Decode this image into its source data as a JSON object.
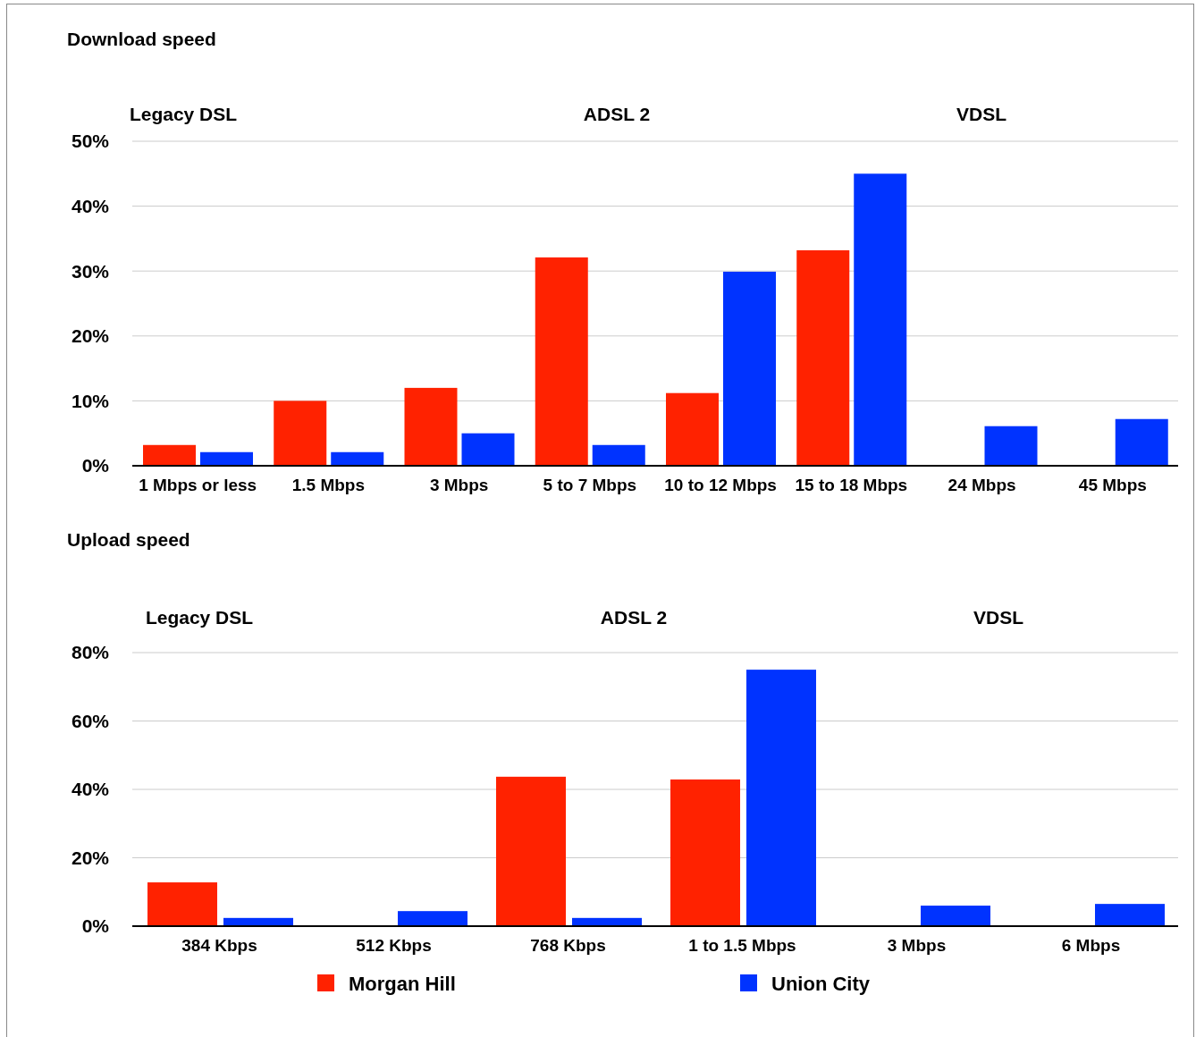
{
  "chart_data": [
    {
      "type": "bar",
      "title": "Download speed",
      "annotations": [
        "Legacy DSL",
        "ADSL 2",
        "VDSL"
      ],
      "categories": [
        "1 Mbps or less",
        "1.5 Mbps",
        "3 Mbps",
        "5 to 7 Mbps",
        "10 to 12 Mbps",
        "15 to 18 Mbps",
        "24 Mbps",
        "45 Mbps"
      ],
      "series": [
        {
          "color": "#ff2200",
          "values": [
            3.2,
            10.0,
            12.0,
            32.1,
            11.2,
            33.2,
            0,
            0
          ]
        },
        {
          "color": "#0033ff",
          "values": [
            2.1,
            2.1,
            5.0,
            3.2,
            29.9,
            45.0,
            6.1,
            7.2
          ]
        }
      ],
      "ylim": [
        0,
        50
      ],
      "yticks": [
        {
          "value": 0,
          "label": "0%"
        },
        {
          "value": 10,
          "label": "10%"
        },
        {
          "value": 20,
          "label": "20%"
        },
        {
          "value": 30,
          "label": "30%"
        },
        {
          "value": 40,
          "label": "40%"
        },
        {
          "value": 50,
          "label": "50%"
        }
      ],
      "grid": "y",
      "legend": false
    },
    {
      "type": "bar",
      "title": "Upload speed",
      "annotations": [
        "Legacy DSL",
        "ADSL 2",
        "VDSL"
      ],
      "categories": [
        "384 Kbps",
        "512 Kbps",
        "768 Kbps",
        "1 to 1.5 Mbps",
        "3 Mbps",
        "6 Mbps"
      ],
      "series": [
        {
          "name": "Morgan Hill",
          "color": "#ff2200",
          "values": [
            12.8,
            0,
            43.7,
            42.9,
            0,
            0
          ]
        },
        {
          "name": "Union City",
          "color": "#0033ff",
          "values": [
            2.4,
            4.4,
            2.4,
            75.0,
            6.0,
            6.5
          ]
        }
      ],
      "ylim": [
        0,
        80
      ],
      "yticks": [
        {
          "value": 0,
          "label": "0%"
        },
        {
          "value": 20,
          "label": "20%"
        },
        {
          "value": 40,
          "label": "40%"
        },
        {
          "value": 60,
          "label": "60%"
        },
        {
          "value": 80,
          "label": "80%"
        }
      ],
      "grid": "y",
      "legend": "bottom"
    }
  ]
}
